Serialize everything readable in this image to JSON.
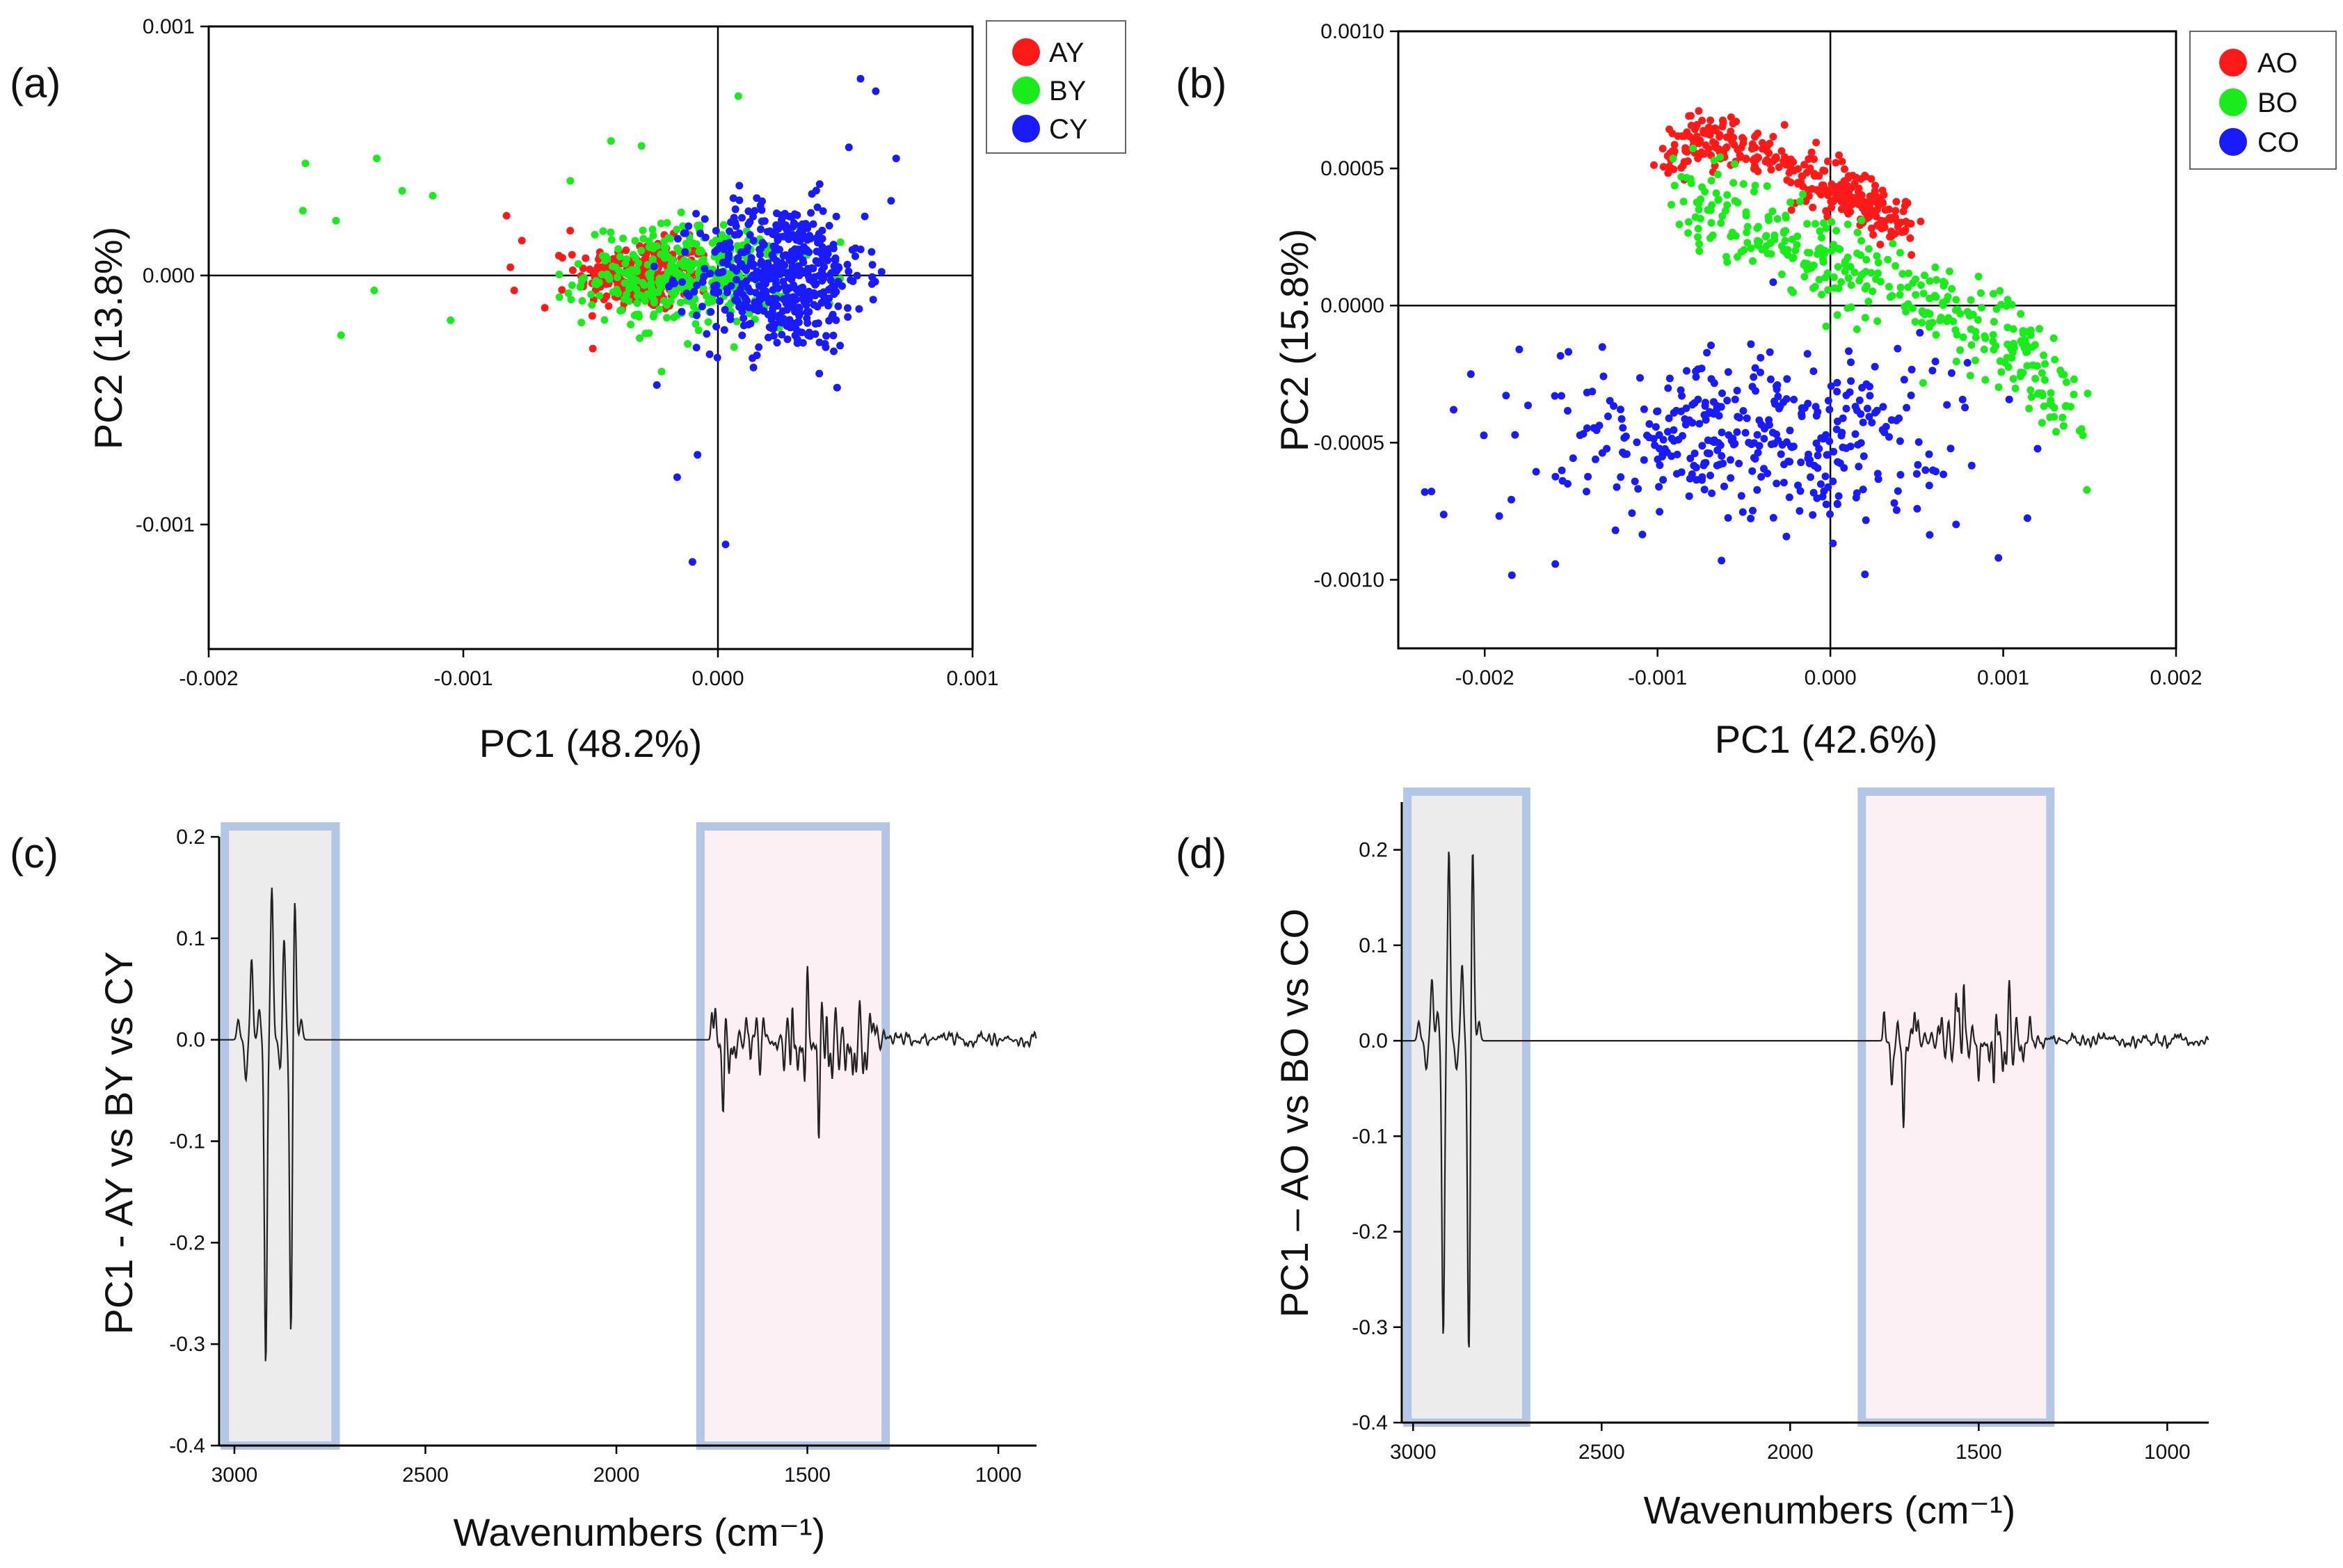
{
  "chart_data": [
    {
      "id": "a",
      "type": "scatter",
      "panel_label": "(a)",
      "xlabel": "PC1 (48.2%)",
      "ylabel": "PC2 (13.8%)",
      "xlim": [
        -0.002,
        0.001
      ],
      "ylim": [
        -0.0015,
        0.001
      ],
      "xticks": [
        -0.002,
        -0.001,
        0.0,
        0.001
      ],
      "xtick_labels": [
        "-0.002",
        "-0.001",
        "0.000",
        "0.001"
      ],
      "yticks": [
        -0.001,
        0.0,
        0.001
      ],
      "ytick_labels": [
        "-0.001",
        "0.000",
        "0.001"
      ],
      "legend_position": "top-right",
      "series": [
        {
          "name": "AY",
          "color": "#ff1a1a",
          "count": 260,
          "center": [
            -0.00029,
            0.0
          ],
          "spread": [
            0.00013,
            7e-05
          ],
          "points": [
            [
              -0.00083,
              0.00024
            ],
            [
              -0.00077,
              0.00014
            ],
            [
              -0.00068,
              -0.00013
            ],
            [
              -0.0008,
              -6e-05
            ],
            [
              -0.00058,
              0.00018
            ]
          ]
        },
        {
          "name": "BY",
          "color": "#1aeb1a",
          "count": 380,
          "center": [
            -0.00012,
            0.0
          ],
          "spread": [
            0.0002,
            0.0001
          ],
          "points": [
            [
              -0.00162,
              0.00045
            ],
            [
              -0.00163,
              0.00026
            ],
            [
              -0.00148,
              -0.00024
            ],
            [
              -0.00134,
              0.00047
            ],
            [
              -0.0015,
              0.00022
            ],
            [
              -0.00124,
              0.00034
            ],
            [
              -0.00112,
              0.00032
            ],
            [
              -0.00105,
              -0.00018
            ],
            [
              -0.00135,
              -6e-05
            ],
            [
              -0.00042,
              0.00054
            ],
            [
              -0.0003,
              0.00052
            ],
            [
              8e-05,
              0.00072
            ],
            [
              -0.00058,
              0.00038
            ]
          ]
        },
        {
          "name": "CY",
          "color": "#1a1aff",
          "count": 520,
          "center": [
            0.00025,
            0.0
          ],
          "spread": [
            0.00016,
            0.00015
          ],
          "points": [
            [
              -0.0001,
              -0.00115
            ],
            [
              3e-05,
              -0.00108
            ],
            [
              0.00056,
              0.00079
            ],
            [
              0.00062,
              0.00074
            ],
            [
              -0.00016,
              -0.00081
            ],
            [
              0.0007,
              0.00047
            ],
            [
              0.00068,
              0.0003
            ],
            [
              -8e-05,
              -0.00072
            ],
            [
              -0.00024,
              -0.00044
            ]
          ]
        }
      ]
    },
    {
      "id": "b",
      "type": "scatter",
      "panel_label": "(b)",
      "xlabel": "PC1 (42.6%)",
      "ylabel": "PC2 (15.8%)",
      "xlim": [
        -0.0025,
        0.002
      ],
      "ylim": [
        -0.00125,
        0.001
      ],
      "xticks": [
        -0.002,
        -0.001,
        0.0,
        0.001,
        0.002
      ],
      "xtick_labels": [
        "-0.002",
        "-0.001",
        "0.000",
        "0.001",
        "0.002"
      ],
      "yticks": [
        -0.001,
        -0.0005,
        0.0,
        0.0005,
        0.001
      ],
      "ytick_labels": [
        "-0.0010",
        "-0.0005",
        "0.0000",
        "0.0005",
        "0.0010"
      ],
      "legend_position": "top-right",
      "series": [
        {
          "name": "AO",
          "color": "#ff1a1a",
          "count": 330,
          "band": [
            [
              -0.00098,
              0.00052
            ],
            [
              -0.0007,
              0.00062
            ],
            [
              -0.0004,
              0.00056
            ],
            [
              0.0,
              0.00043
            ],
            [
              0.0002,
              0.00037
            ],
            [
              0.00045,
              0.00028
            ]
          ],
          "band_width": 5e-05
        },
        {
          "name": "BO",
          "color": "#1aeb1a",
          "count": 360,
          "band": [
            [
              -0.00087,
              0.0004
            ],
            [
              -0.00045,
              0.00028
            ],
            [
              -5e-05,
              0.00018
            ],
            [
              0.0004,
              5e-05
            ],
            [
              0.0008,
              -5e-05
            ],
            [
              0.0011,
              -0.00018
            ],
            [
              0.0014,
              -0.0004
            ]
          ],
          "band_width": 8e-05
        },
        {
          "name": "CO",
          "color": "#1a1aff",
          "count": 380,
          "center": [
            -0.0004,
            -0.00048
          ],
          "spread": [
            0.0006,
            0.00015
          ],
          "points": [
            [
              -0.00218,
              -0.00038
            ],
            [
              -0.00208,
              -0.00025
            ],
            [
              -0.0018,
              -0.00016
            ],
            [
              -0.00063,
              -0.00093
            ],
            [
              0.0002,
              -0.00098
            ],
            [
              -0.00035,
              -0.00017
            ],
            [
              -0.00152,
              -0.00065
            ],
            [
              0.00037,
              -0.00072
            ],
            [
              0.00055,
              -0.0006
            ]
          ]
        }
      ]
    },
    {
      "id": "c",
      "type": "line",
      "panel_label": "(c)",
      "xlabel": "Wavenumbers (cm⁻¹)",
      "ylabel": "PC1 - AY vs BY vs CY",
      "xlim": [
        3040,
        900
      ],
      "ylim": [
        -0.4,
        0.2
      ],
      "xticks": [
        3000,
        2500,
        2000,
        1500,
        1000
      ],
      "xtick_labels": [
        "3000",
        "2500",
        "2000",
        "1500",
        "1000"
      ],
      "yticks": [
        -0.4,
        -0.3,
        -0.2,
        -0.1,
        0.0,
        0.1,
        0.2
      ],
      "ytick_labels": [
        "-0.4",
        "-0.3",
        "-0.2",
        "-0.1",
        "0.0",
        "0.1",
        "0.2"
      ],
      "highlight_regions": [
        {
          "from": 3025,
          "to": 2735,
          "fill": "#ececec",
          "border": "#b3c6e6"
        },
        {
          "from": 1780,
          "to": 1295,
          "fill": "#fdf0f4",
          "border": "#b3c6e6"
        }
      ],
      "peaks": [
        [
          2990,
          0.02
        ],
        [
          2970,
          -0.04
        ],
        [
          2955,
          0.08
        ],
        [
          2935,
          0.03
        ],
        [
          2918,
          -0.32
        ],
        [
          2902,
          0.15
        ],
        [
          2880,
          -0.03
        ],
        [
          2870,
          0.1
        ],
        [
          2852,
          -0.29
        ],
        [
          2842,
          0.14
        ],
        [
          2825,
          0.02
        ]
      ],
      "fingerprint": {
        "from": 1750,
        "to": 1300,
        "amplitude": 0.045,
        "peaks": [
          [
            1720,
            -0.06
          ],
          [
            1650,
            -0.05
          ],
          [
            1540,
            0.05
          ],
          [
            1500,
            0.065
          ],
          [
            1470,
            -0.095
          ],
          [
            1450,
            0.04
          ],
          [
            1400,
            -0.04
          ]
        ]
      },
      "tail": {
        "from": 1290,
        "to": 900,
        "amplitude": 0.008
      }
    },
    {
      "id": "d",
      "type": "line",
      "panel_label": "(d)",
      "xlabel": "Wavenumbers (cm⁻¹)",
      "ylabel": "PC1 – AO vs BO vs CO",
      "xlim": [
        3030,
        890
      ],
      "ylim": [
        -0.4,
        0.25
      ],
      "xticks": [
        3000,
        2500,
        2000,
        1500,
        1000
      ],
      "xtick_labels": [
        "3000",
        "2500",
        "2000",
        "1500",
        "1000"
      ],
      "yticks": [
        -0.4,
        -0.3,
        -0.2,
        -0.1,
        0.0,
        0.1,
        0.2
      ],
      "ytick_labels": [
        "-0.4",
        "-0.3",
        "-0.2",
        "-0.1",
        "0.0",
        "0.1",
        "0.2"
      ],
      "highlight_regions": [
        {
          "from": 3015,
          "to": 2700,
          "fill": "#ececec",
          "border": "#b3c6e6"
        },
        {
          "from": 1810,
          "to": 1310,
          "fill": "#fdf0f4",
          "border": "#b3c6e6"
        }
      ],
      "peaks": [
        [
          2985,
          0.02
        ],
        [
          2965,
          -0.03
        ],
        [
          2950,
          0.065
        ],
        [
          2935,
          0.03
        ],
        [
          2920,
          -0.31
        ],
        [
          2905,
          0.2
        ],
        [
          2885,
          -0.03
        ],
        [
          2870,
          0.08
        ],
        [
          2852,
          -0.33
        ],
        [
          2842,
          0.205
        ],
        [
          2825,
          0.02
        ]
      ],
      "fingerprint": {
        "from": 1760,
        "to": 1360,
        "amplitude": 0.035,
        "peaks": [
          [
            1730,
            -0.04
          ],
          [
            1700,
            -0.075
          ],
          [
            1560,
            0.05
          ],
          [
            1540,
            0.065
          ],
          [
            1500,
            -0.05
          ],
          [
            1460,
            -0.05
          ],
          [
            1420,
            0.035
          ]
        ]
      },
      "tail": {
        "from": 1350,
        "to": 890,
        "amplitude": 0.008
      }
    }
  ]
}
